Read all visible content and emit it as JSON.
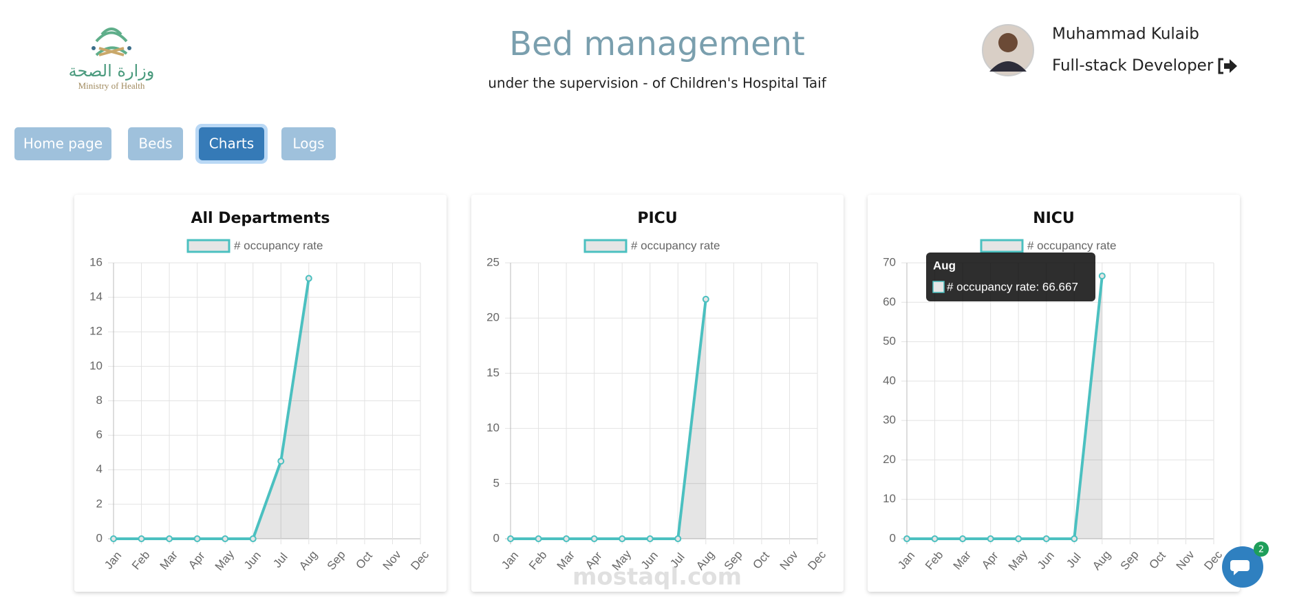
{
  "header": {
    "logo_arabic": "وزارة الصحة",
    "logo_english": "Ministry of Health",
    "title": "Bed management",
    "subtitle": "under the supervision - of Children's Hospital Taif",
    "user_name": "Muhammad Kulaib",
    "user_role": "Full-stack Developer"
  },
  "nav": [
    "Home page",
    "Beds",
    "Charts",
    "Logs"
  ],
  "active_nav": 2,
  "chart_data": [
    {
      "type": "line",
      "title": "All Departments",
      "categories": [
        "Jan",
        "Feb",
        "Mar",
        "Apr",
        "May",
        "Jun",
        "Jul",
        "Aug",
        "Sep",
        "Oct",
        "Nov",
        "Dec"
      ],
      "series": [
        {
          "name": "# occupancy rate",
          "color": "#4bc0c0",
          "values": [
            0,
            0,
            0,
            0,
            0,
            0,
            4.5,
            15.1,
            null,
            null,
            null,
            null
          ]
        }
      ],
      "ylim": [
        0,
        16
      ],
      "yticks": [
        0,
        2,
        4,
        6,
        8,
        10,
        12,
        14,
        16
      ],
      "grid": true
    },
    {
      "type": "line",
      "title": "PICU",
      "categories": [
        "Jan",
        "Feb",
        "Mar",
        "Apr",
        "May",
        "Jun",
        "Jul",
        "Aug",
        "Sep",
        "Oct",
        "Nov",
        "Dec"
      ],
      "series": [
        {
          "name": "# occupancy rate",
          "color": "#4bc0c0",
          "values": [
            0,
            0,
            0,
            0,
            0,
            0,
            0,
            21.7,
            null,
            null,
            null,
            null
          ]
        }
      ],
      "ylim": [
        0,
        25
      ],
      "yticks": [
        0,
        5,
        10,
        15,
        20,
        25
      ],
      "grid": true
    },
    {
      "type": "line",
      "title": "NICU",
      "categories": [
        "Jan",
        "Feb",
        "Mar",
        "Apr",
        "May",
        "Jun",
        "Jul",
        "Aug",
        "Sep",
        "Oct",
        "Nov",
        "Dec"
      ],
      "series": [
        {
          "name": "# occupancy rate",
          "color": "#4bc0c0",
          "values": [
            0,
            0,
            0,
            0,
            0,
            0,
            0,
            66.667,
            null,
            null,
            null,
            null
          ]
        }
      ],
      "ylim": [
        0,
        70
      ],
      "yticks": [
        0,
        10,
        20,
        30,
        40,
        50,
        60,
        70
      ],
      "grid": true,
      "tooltip": {
        "title": "Aug",
        "text": "# occupancy rate: 66.667"
      }
    }
  ],
  "watermark": "mostaql.com",
  "chat_badge": "2"
}
